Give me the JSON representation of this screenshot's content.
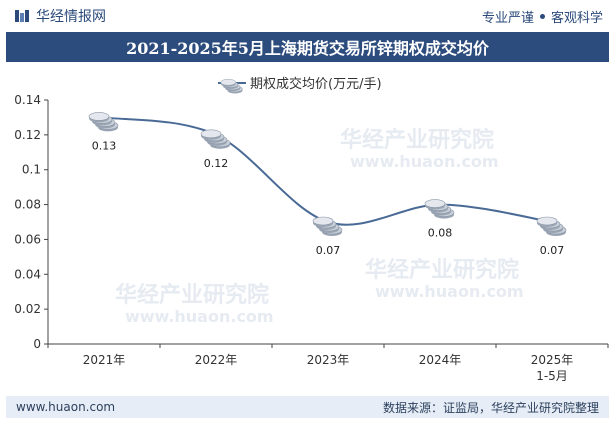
{
  "header": {
    "brand": "华经情报网",
    "tagline_left": "专业严谨",
    "tagline_right": "客观科学"
  },
  "title": "2021-2025年5月上海期货交易所锌期权成交均价",
  "footer": {
    "website": "www.huaon.com",
    "source": "数据来源：证监局，华经产业研究院整理"
  },
  "watermark": {
    "name": "华经产业研究院",
    "url": "www.huaon.com"
  },
  "colors": {
    "line": "#4a6a96",
    "header": "#2d4c7e",
    "footer_bg": "#e6edf6"
  },
  "chart_data": {
    "type": "line",
    "title": "2021-2025年5月上海期货交易所锌期权成交均价",
    "categories": [
      "2021年",
      "2022年",
      "2023年",
      "2024年",
      "2025年 1-5月"
    ],
    "series": [
      {
        "name": "期权成交均价(万元/手)",
        "values": [
          0.13,
          0.12,
          0.07,
          0.08,
          0.07
        ]
      }
    ],
    "data_labels": [
      "0.13",
      "0.12",
      "0.07",
      "0.08",
      "0.07"
    ],
    "y_ticks": [
      "0",
      "0.02",
      "0.04",
      "0.06",
      "0.08",
      "0.1",
      "0.12",
      "0.14"
    ],
    "ylim": [
      0,
      0.14
    ],
    "xlabel": "",
    "ylabel": "",
    "legend_position": "top-center",
    "grid": false
  }
}
